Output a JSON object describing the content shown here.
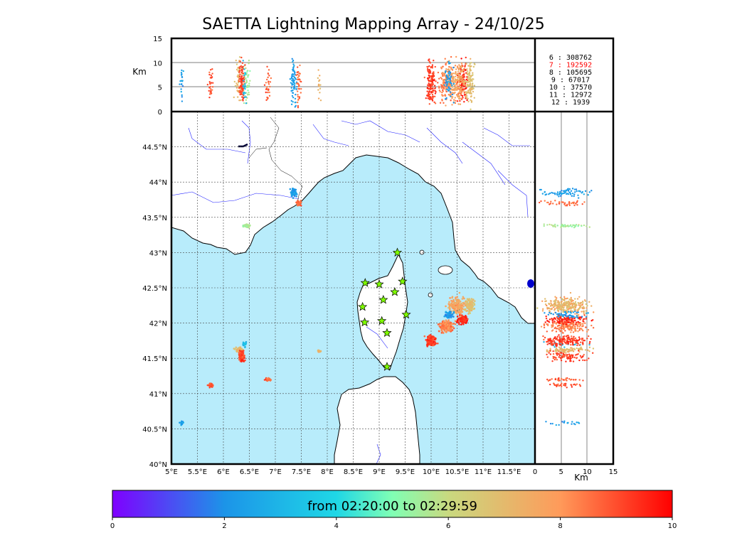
{
  "title": "SAETTA Lightning Mapping Array - 24/10/25",
  "colorbar": {
    "label": "from 02:20:00 to 02:29:59",
    "ticks": [
      "0",
      "2",
      "4",
      "6",
      "8",
      "10"
    ],
    "min": 0,
    "max": 10
  },
  "altitude_unit": "Km",
  "altitude_ticks": [
    "0",
    "5",
    "10",
    "15"
  ],
  "lon_ticks": [
    "5°E",
    "5.5°E",
    "6°E",
    "6.5°E",
    "7°E",
    "7.5°E",
    "8°E",
    "8.5°E",
    "9°E",
    "9.5°E",
    "10°E",
    "10.5°E",
    "11°E",
    "11.5°E"
  ],
  "lat_ticks": [
    "40°N",
    "40.5°N",
    "41°N",
    "41.5°N",
    "42°N",
    "42.5°N",
    "43°N",
    "43.5°N",
    "44°N",
    "44.5°N"
  ],
  "counts": [
    {
      "label": "6  :   308762",
      "color": "#000000"
    },
    {
      "label": "7  :   192592",
      "color": "#ff0000"
    },
    {
      "label": "8  :   105695",
      "color": "#000000"
    },
    {
      "label": "9  :    67017",
      "color": "#000000"
    },
    {
      "label": "10 :    37570",
      "color": "#000000"
    },
    {
      "label": "11 :    12972",
      "color": "#000000"
    },
    {
      "label": "12 :     1939",
      "color": "#000000"
    }
  ],
  "colors": {
    "sea": "#b8ecfb",
    "land": "#ffffff",
    "rivers": "#2020ff",
    "station": "#7fff00"
  },
  "stations": [
    {
      "lon": 9.35,
      "lat": 43.0
    },
    {
      "lon": 8.73,
      "lat": 42.57
    },
    {
      "lon": 9.0,
      "lat": 42.55
    },
    {
      "lon": 9.45,
      "lat": 42.59
    },
    {
      "lon": 9.3,
      "lat": 42.44
    },
    {
      "lon": 9.08,
      "lat": 42.33
    },
    {
      "lon": 8.68,
      "lat": 42.23
    },
    {
      "lon": 9.52,
      "lat": 42.12
    },
    {
      "lon": 8.72,
      "lat": 42.01
    },
    {
      "lon": 9.05,
      "lat": 42.03
    },
    {
      "lon": 9.15,
      "lat": 41.86
    },
    {
      "lon": 9.15,
      "lat": 41.38
    }
  ],
  "clusters": [
    {
      "lon": 7.35,
      "lat": 43.85,
      "rlon": 0.1,
      "rlat": 0.08,
      "t": 2.3,
      "n": 70
    },
    {
      "lon": 7.45,
      "lat": 43.7,
      "rlon": 0.06,
      "rlat": 0.06,
      "t": 8.6,
      "n": 40
    },
    {
      "lon": 6.45,
      "lat": 43.38,
      "rlon": 0.1,
      "rlat": 0.04,
      "t": 5.5,
      "n": 50
    },
    {
      "lon": 6.3,
      "lat": 41.62,
      "rlon": 0.12,
      "rlat": 0.05,
      "t": 7.0,
      "n": 60
    },
    {
      "lon": 6.35,
      "lat": 41.52,
      "rlon": 0.08,
      "rlat": 0.12,
      "t": 9.2,
      "n": 90
    },
    {
      "lon": 6.42,
      "lat": 41.7,
      "rlon": 0.06,
      "rlat": 0.05,
      "t": 3.0,
      "n": 20
    },
    {
      "lon": 6.85,
      "lat": 41.2,
      "rlon": 0.08,
      "rlat": 0.03,
      "t": 8.8,
      "n": 30
    },
    {
      "lon": 5.75,
      "lat": 41.12,
      "rlon": 0.08,
      "rlat": 0.04,
      "t": 9.0,
      "n": 30
    },
    {
      "lon": 5.2,
      "lat": 40.58,
      "rlon": 0.06,
      "rlat": 0.05,
      "t": 2.2,
      "n": 20
    },
    {
      "lon": 7.85,
      "lat": 41.6,
      "rlon": 0.05,
      "rlat": 0.02,
      "t": 7.2,
      "n": 15
    },
    {
      "lon": 10.0,
      "lat": 41.75,
      "rlon": 0.15,
      "rlat": 0.1,
      "t": 9.2,
      "n": 160
    },
    {
      "lon": 10.3,
      "lat": 41.95,
      "rlon": 0.2,
      "rlat": 0.12,
      "t": 8.3,
      "n": 160
    },
    {
      "lon": 10.6,
      "lat": 42.05,
      "rlon": 0.15,
      "rlat": 0.1,
      "t": 9.5,
      "n": 120
    },
    {
      "lon": 10.5,
      "lat": 42.25,
      "rlon": 0.25,
      "rlat": 0.2,
      "t": 7.6,
      "n": 170
    },
    {
      "lon": 10.75,
      "lat": 42.25,
      "rlon": 0.12,
      "rlat": 0.15,
      "t": 6.8,
      "n": 110
    },
    {
      "lon": 10.35,
      "lat": 42.12,
      "rlon": 0.12,
      "rlat": 0.08,
      "t": 2.3,
      "n": 50
    }
  ]
}
